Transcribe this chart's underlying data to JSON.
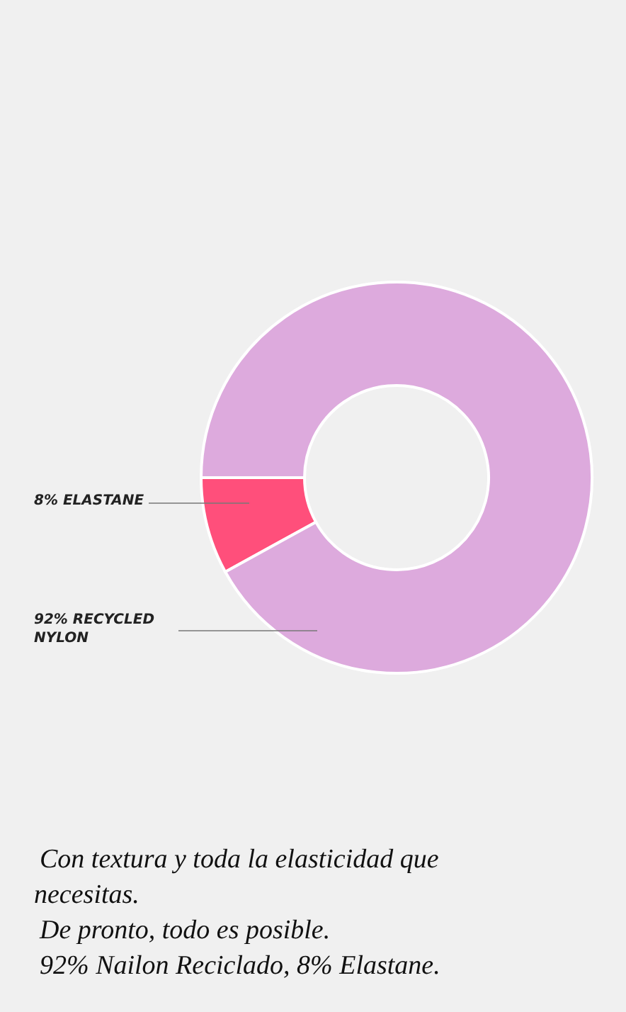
{
  "chart_data": {
    "type": "donut",
    "categories": [
      "ELASTANE",
      "RECYCLED NYLON"
    ],
    "values": [
      8,
      92
    ],
    "colors": [
      "#ff4f7b",
      "#ddaadd"
    ],
    "value_labels": [
      "8%",
      "92%"
    ],
    "annotations": [
      "Con textura y toda la elasticidad que necesitas.",
      "De pronto, todo es posible.",
      "92% Nailon Reciclado, 8% Elastane."
    ]
  }
}
